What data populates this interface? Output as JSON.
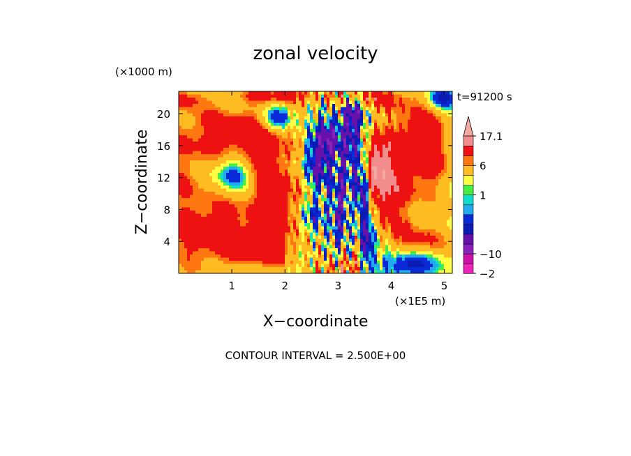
{
  "chart_data": {
    "type": "heatmap",
    "title": "zonal velocity",
    "xlabel": "X−coordinate",
    "ylabel": "Z−coordinate",
    "x_units": "(×1E5 m)",
    "y_units": "(×1000 m)",
    "time_label": "t=91200 s",
    "footer": "CONTOUR INTERVAL = 2.500E+00",
    "xlim": [
      0,
      5.15
    ],
    "ylim": [
      0,
      22.8
    ],
    "x_ticks": [
      1,
      2,
      3,
      4,
      5
    ],
    "y_ticks": [
      4,
      8,
      12,
      16,
      20
    ],
    "x_tick_labels": [
      "1",
      "2",
      "3",
      "4",
      "5"
    ],
    "y_tick_labels": [
      "4",
      "8",
      "12",
      "16",
      "20"
    ],
    "grid": false,
    "colorbar": {
      "placement": "right",
      "levels": [
        -20,
        -15,
        -10,
        -5,
        -2.5,
        -1,
        0,
        0.5,
        1,
        2.5,
        5,
        6,
        10,
        15,
        17.1
      ],
      "labeled_levels": [
        {
          "value": 17.1,
          "text": "17.1"
        },
        {
          "value": 6,
          "text": "6"
        },
        {
          "value": 1,
          "text": "1"
        },
        {
          "value": -2,
          "text": "−2"
        },
        {
          "value": -10,
          "text": "−10"
        }
      ],
      "colors": [
        "#ee22bb",
        "#cc11aa",
        "#8822bb",
        "#6611aa",
        "#0a1cb4",
        "#0a2ad8",
        "#22aaee",
        "#11ddcc",
        "#44ee44",
        "#ffff44",
        "#ffbb22",
        "#ff7711",
        "#ee1111",
        "#f28d8d",
        "#f4aaa0"
      ]
    },
    "field_description_values": {
      "background_value": 2.0,
      "blobs": [
        {
          "x": 0.3,
          "z": 5,
          "sx": 0.5,
          "sz": 4,
          "v": 3.5
        },
        {
          "x": 0.1,
          "z": 13,
          "sx": 0.35,
          "sz": 3,
          "v": 3
        },
        {
          "x": 1.05,
          "z": 12.5,
          "sx": 0.25,
          "sz": 1.5,
          "v": -6
        },
        {
          "x": 0.9,
          "z": 12,
          "sx": 0.5,
          "sz": 3,
          "v": -1.2
        },
        {
          "x": 0.4,
          "z": 18,
          "sx": 0.6,
          "sz": 2.5,
          "v": 3.2
        },
        {
          "x": 1.25,
          "z": 17,
          "sx": 0.5,
          "sz": 3,
          "v": 3.5
        },
        {
          "x": 0.9,
          "z": 6,
          "sx": 0.6,
          "sz": 3.5,
          "v": 3.0
        },
        {
          "x": 1.6,
          "z": 3,
          "sx": 0.5,
          "sz": 2,
          "v": 4.5
        },
        {
          "x": 1.9,
          "z": 8,
          "sx": 0.35,
          "sz": 3,
          "v": 4
        },
        {
          "x": 1.7,
          "z": 14,
          "sx": 0.5,
          "sz": 4,
          "v": 4
        },
        {
          "x": 1.85,
          "z": 19.5,
          "sx": 0.2,
          "sz": 1.2,
          "v": -6
        },
        {
          "x": 2.6,
          "z": 14,
          "sx": 0.18,
          "sz": 2.5,
          "v": -8
        },
        {
          "x": 2.85,
          "z": 17,
          "sx": 0.15,
          "sz": 1.5,
          "v": -8
        },
        {
          "x": 2.5,
          "z": 7,
          "sx": 0.15,
          "sz": 1.5,
          "v": -5
        },
        {
          "x": 3.05,
          "z": 9,
          "sx": 0.1,
          "sz": 3,
          "v": -7
        },
        {
          "x": 3.2,
          "z": 16,
          "sx": 0.12,
          "sz": 3,
          "v": -7
        },
        {
          "x": 3.45,
          "z": 11,
          "sx": 0.1,
          "sz": 3,
          "v": -10
        },
        {
          "x": 3.55,
          "z": 4,
          "sx": 0.08,
          "sz": 2.5,
          "v": -8
        },
        {
          "x": 3.3,
          "z": 20,
          "sx": 0.12,
          "sz": 1.5,
          "v": -7
        },
        {
          "x": 3.7,
          "z": 13,
          "sx": 0.2,
          "sz": 2.5,
          "v": 9
        },
        {
          "x": 4.0,
          "z": 11,
          "sx": 0.35,
          "sz": 5,
          "v": 6
        },
        {
          "x": 4.4,
          "z": 18,
          "sx": 0.35,
          "sz": 3,
          "v": 3
        },
        {
          "x": 4.75,
          "z": 15,
          "sx": 0.3,
          "sz": 4,
          "v": 4.5
        },
        {
          "x": 4.6,
          "z": 4,
          "sx": 0.35,
          "sz": 1.5,
          "v": 4
        },
        {
          "x": 4.3,
          "z": 1.2,
          "sx": 0.4,
          "sz": 1.2,
          "v": -6
        },
        {
          "x": 4.95,
          "z": 22,
          "sx": 0.2,
          "sz": 1,
          "v": -6
        },
        {
          "x": 3.6,
          "z": 22,
          "sx": 0.5,
          "sz": 1,
          "v": 5
        },
        {
          "x": 2.1,
          "z": 22.3,
          "sx": 0.6,
          "sz": 0.8,
          "v": 5
        },
        {
          "x": 3.1,
          "z": 0.8,
          "sx": 0.3,
          "sz": 1.0,
          "v": 6
        },
        {
          "x": 1.3,
          "z": 0.5,
          "sx": 0.6,
          "sz": 0.8,
          "v": -0.5
        },
        {
          "x": 0.1,
          "z": 22,
          "sx": 0.3,
          "sz": 1,
          "v": 4
        }
      ]
    }
  }
}
